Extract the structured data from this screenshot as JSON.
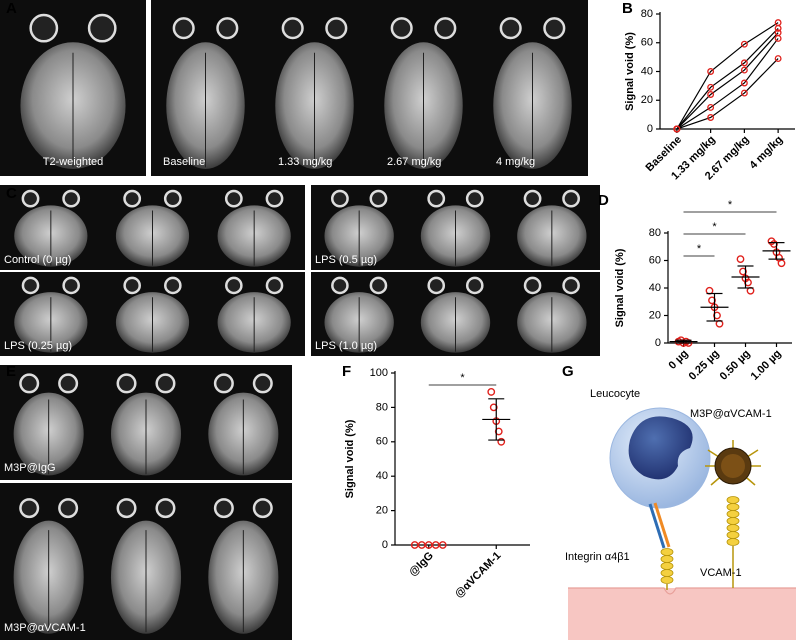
{
  "panel_labels": [
    "A",
    "B",
    "C",
    "D",
    "E",
    "F",
    "G"
  ],
  "mri": {
    "A": [
      "T2-weighted",
      "Baseline",
      "1.33 mg/kg",
      "2.67 mg/kg",
      "4 mg/kg"
    ],
    "C": [
      "Control (0 µg)",
      "LPS (0.5 µg)",
      "LPS (0.25 µg)",
      "LPS (1.0 µg)"
    ],
    "E": [
      "M3P@IgG",
      "M3P@αVCAM-1"
    ]
  },
  "chart_data": [
    {
      "type": "line",
      "y_label": "Signal void (%)",
      "categories": [
        "Baseline",
        "1.33 mg/kg",
        "2.67 mg/kg",
        "4 mg/kg"
      ],
      "line_color": "#000000",
      "marker_color": "#e0201b",
      "series": [
        {
          "values": [
            0,
            40,
            59,
            74
          ]
        },
        {
          "values": [
            0,
            29,
            46,
            70
          ]
        },
        {
          "values": [
            0,
            24,
            41,
            67
          ]
        },
        {
          "values": [
            0,
            15,
            32,
            63
          ]
        },
        {
          "values": [
            0,
            8,
            25,
            49
          ]
        }
      ],
      "ylim": [
        0,
        80
      ],
      "yticks": [
        0,
        20,
        40,
        60,
        80
      ]
    },
    {
      "type": "dot",
      "y_label": "Signal void (%)",
      "categories": [
        "0 µg",
        "0.25 µg",
        "0.50 µg",
        "1.00 µg"
      ],
      "color": "#e0201b",
      "points": [
        [
          1,
          2,
          0,
          1,
          0
        ],
        [
          38,
          31,
          26,
          20,
          14
        ],
        [
          61,
          52,
          47,
          44,
          38
        ],
        [
          74,
          72,
          66,
          62,
          58
        ]
      ],
      "mean": [
        1,
        26,
        48,
        67
      ],
      "sd": [
        1,
        10,
        8,
        6
      ],
      "annotations": [
        "*",
        "*",
        "*"
      ],
      "ylim": [
        0,
        80
      ],
      "yticks": [
        0,
        20,
        40,
        60,
        80
      ]
    },
    {
      "type": "dot",
      "y_label": "Signal void (%)",
      "categories": [
        "@IgG",
        "@αVCAM-1"
      ],
      "color": "#e0201b",
      "points": [
        [
          0,
          0,
          0,
          0,
          0
        ],
        [
          89,
          80,
          72,
          66,
          60
        ]
      ],
      "mean": [
        0,
        73
      ],
      "sd": [
        0,
        12
      ],
      "annotations": [
        "*"
      ],
      "ylim": [
        0,
        100
      ],
      "yticks": [
        0,
        20,
        40,
        60,
        80,
        100
      ]
    }
  ],
  "diagram": {
    "leucocyte": "Leucocyte",
    "particle": "M3P@αVCAM-1",
    "integrin": "Integrin α4β1",
    "vcam": "VCAM-1"
  }
}
